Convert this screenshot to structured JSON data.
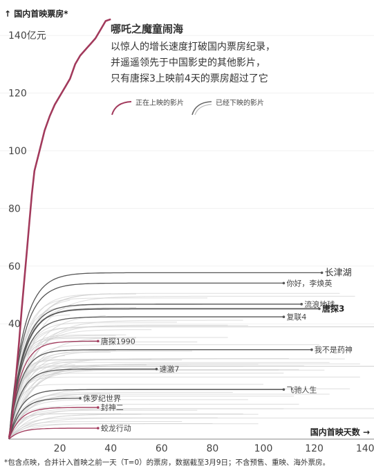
{
  "chart_data": {
    "type": "line",
    "y_axis_title": "↑ 国内首映票房*",
    "x_axis_title": "国内首映天数 →",
    "xlim": [
      0,
      155
    ],
    "ylim": [
      0,
      145
    ],
    "x_ticks": [
      20,
      40,
      60,
      80,
      100,
      120,
      140
    ],
    "y_ticks": [
      {
        "value": 140,
        "label": "140亿元"
      },
      {
        "value": 120,
        "label": "120"
      },
      {
        "value": 100,
        "label": "100"
      },
      {
        "value": 80,
        "label": "80"
      },
      {
        "value": 60,
        "label": "60"
      },
      {
        "value": 40,
        "label": "40"
      }
    ],
    "headline": {
      "title": "哪吒之魔童闹海",
      "lines": [
        "以惊人的增长速度打破国内票房纪录，",
        "并遥遥领先于中国影史的其他影片，",
        "只有唐探3上映前4天的票房超过了它"
      ]
    },
    "legend": {
      "showing": {
        "label": "正在上映的影片",
        "color": "#a23a5c"
      },
      "ended": {
        "label": "已经下映的影片",
        "color": "#666666"
      }
    },
    "footnote": "*包含点映，合并计入首映之前一天（T=0）的票房，数据截至3月9日；不含预售、重映、海外票房。",
    "labeled_series": [
      {
        "name": "长津湖",
        "final_day": 123,
        "final_value": 57.7,
        "status": "ended",
        "emphasis": "big"
      },
      {
        "name": "你好，李焕英",
        "final_day": 108,
        "final_value": 54.1,
        "status": "ended",
        "emphasis": "normal"
      },
      {
        "name": "流浪地球",
        "final_day": 115,
        "final_value": 46.8,
        "status": "ended",
        "emphasis": "normal"
      },
      {
        "name": "唐探3",
        "final_day": 122,
        "final_value": 45.2,
        "status": "ended",
        "emphasis": "bold"
      },
      {
        "name": "复联4",
        "final_day": 108,
        "final_value": 42.4,
        "status": "ended",
        "emphasis": "normal"
      },
      {
        "name": "唐探1990",
        "final_day": 35,
        "final_value": 34.0,
        "status": "showing",
        "emphasis": "normal"
      },
      {
        "name": "我不是药神",
        "final_day": 119,
        "final_value": 31.0,
        "status": "ended",
        "emphasis": "normal"
      },
      {
        "name": "速激7",
        "final_day": 58,
        "final_value": 24.3,
        "status": "ended",
        "emphasis": "normal"
      },
      {
        "name": "飞驰人生",
        "final_day": 108,
        "final_value": 17.2,
        "status": "ended",
        "emphasis": "normal"
      },
      {
        "name": "侏罗纪世界",
        "final_day": 28,
        "final_value": 14.2,
        "status": "ended",
        "emphasis": "normal"
      },
      {
        "name": "封神二",
        "final_day": 35,
        "final_value": 11.0,
        "status": "showing",
        "emphasis": "normal"
      },
      {
        "name": "蛟龙行动",
        "final_day": 35,
        "final_value": 3.8,
        "status": "showing",
        "emphasis": "normal"
      }
    ],
    "nezha_series": {
      "name": "哪吒之魔童闹海",
      "status": "showing",
      "x": [
        0,
        1,
        2,
        3,
        4,
        5,
        6,
        7,
        8,
        9,
        10,
        12,
        14,
        16,
        18,
        20,
        22,
        24,
        26,
        28,
        30,
        32,
        34,
        36,
        38,
        40
      ],
      "y": [
        0.5,
        5,
        14,
        24,
        34,
        45,
        55,
        65,
        75,
        85,
        93,
        100,
        107,
        112,
        116,
        119,
        122,
        125,
        130,
        133,
        135,
        137,
        139,
        142,
        145,
        145.6
      ]
    }
  }
}
